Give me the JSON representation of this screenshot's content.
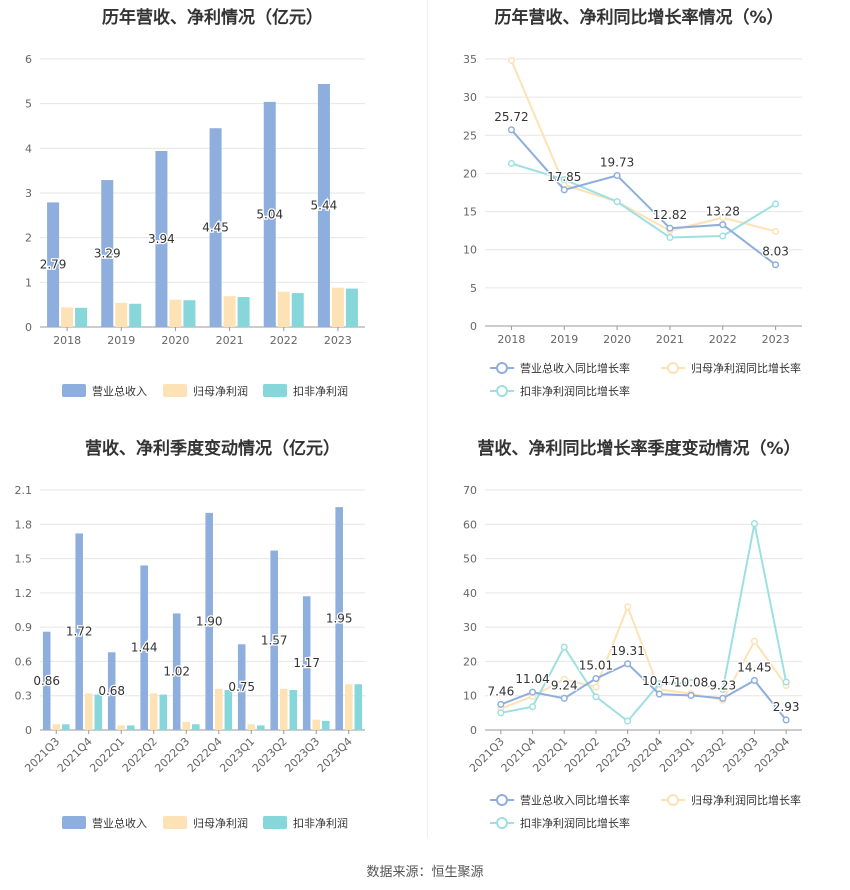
{
  "colors": {
    "revenue": "#8eaedd",
    "net_profit": "#fde2b5",
    "deducted_profit": "#86d6da",
    "grid": "#e6e6e6",
    "axis_text": "#666666"
  },
  "footer": {
    "source_label": "数据来源：",
    "source_name": "恒生聚源"
  },
  "chart_data": [
    {
      "id": "annual-amount",
      "type": "bar",
      "title": "历年营收、净利情况（亿元）",
      "categories": [
        "2018",
        "2019",
        "2020",
        "2021",
        "2022",
        "2023"
      ],
      "ylim": [
        0,
        6
      ],
      "yticks": [
        0,
        1,
        2,
        3,
        4,
        5,
        6
      ],
      "series": [
        {
          "name": "营业总收入",
          "values": [
            2.79,
            3.29,
            3.94,
            4.45,
            5.04,
            5.44
          ],
          "labels": [
            "2.79",
            "3.29",
            "3.94",
            "4.45",
            "5.04",
            "5.44"
          ]
        },
        {
          "name": "归母净利润",
          "values": [
            0.44,
            0.54,
            0.61,
            0.69,
            0.79,
            0.88
          ]
        },
        {
          "name": "扣非净利润",
          "values": [
            0.43,
            0.52,
            0.6,
            0.67,
            0.76,
            0.86
          ]
        }
      ],
      "legend_position": "bottom"
    },
    {
      "id": "annual-growth",
      "type": "line",
      "title": "历年营收、净利同比增长率情况（%）",
      "categories": [
        "2018",
        "2019",
        "2020",
        "2021",
        "2022",
        "2023"
      ],
      "ylim": [
        0,
        35
      ],
      "yticks": [
        0,
        5,
        10,
        15,
        20,
        25,
        30,
        35
      ],
      "series": [
        {
          "name": "营业总收入同比增长率",
          "values": [
            25.72,
            17.85,
            19.73,
            12.82,
            13.28,
            8.03
          ],
          "labels": [
            "25.72",
            "17.85",
            "19.73",
            "12.82",
            "13.28",
            "8.03"
          ]
        },
        {
          "name": "归母净利润同比增长率",
          "values": [
            34.8,
            18.5,
            16.3,
            12.5,
            14.2,
            12.4
          ]
        },
        {
          "name": "扣非净利润同比增长率",
          "values": [
            21.3,
            19.2,
            16.3,
            11.6,
            11.8,
            16.0
          ]
        }
      ],
      "legend_position": "bottom"
    },
    {
      "id": "quarterly-amount",
      "type": "bar",
      "title": "营收、净利季度变动情况（亿元）",
      "categories": [
        "2021Q3",
        "2021Q4",
        "2022Q1",
        "2022Q2",
        "2022Q3",
        "2022Q4",
        "2023Q1",
        "2023Q2",
        "2023Q3",
        "2023Q4"
      ],
      "ylim": [
        0,
        2.1
      ],
      "yticks": [
        "0",
        "0.3",
        "0.6",
        "0.9",
        "1.2",
        "1.5",
        "1.8",
        "2.1"
      ],
      "series": [
        {
          "name": "营业总收入",
          "values": [
            0.86,
            1.72,
            0.68,
            1.44,
            1.02,
            1.9,
            0.75,
            1.57,
            1.17,
            1.95
          ],
          "labels": [
            "0.86",
            "1.72",
            "0.68",
            "1.44",
            "1.02",
            "1.90",
            "0.75",
            "1.57",
            "1.17",
            "1.95"
          ]
        },
        {
          "name": "归母净利润",
          "values": [
            0.05,
            0.32,
            0.04,
            0.32,
            0.07,
            0.36,
            0.05,
            0.36,
            0.09,
            0.4
          ]
        },
        {
          "name": "扣非净利润",
          "values": [
            0.05,
            0.31,
            0.04,
            0.31,
            0.05,
            0.35,
            0.04,
            0.35,
            0.08,
            0.4
          ]
        }
      ],
      "legend_position": "bottom"
    },
    {
      "id": "quarterly-growth",
      "type": "line",
      "title": "营收、净利同比增长率季度变动情况（%）",
      "categories": [
        "2021Q3",
        "2021Q4",
        "2022Q1",
        "2022Q2",
        "2022Q3",
        "2022Q4",
        "2023Q1",
        "2023Q2",
        "2023Q3",
        "2023Q4"
      ],
      "ylim": [
        0,
        70
      ],
      "yticks": [
        0,
        10,
        20,
        30,
        40,
        50,
        60,
        70
      ],
      "series": [
        {
          "name": "营业总收入同比增长率",
          "values": [
            7.46,
            11.04,
            9.24,
            15.01,
            19.31,
            10.47,
            10.08,
            9.23,
            14.45,
            2.93
          ],
          "labels": [
            "7.46",
            "11.04",
            "9.24",
            "15.01",
            "19.31",
            "10.47",
            "10.08",
            "9.23",
            "14.45",
            "2.93"
          ]
        },
        {
          "name": "归母净利润同比增长率",
          "values": [
            6.2,
            9.8,
            14.8,
            12.5,
            35.9,
            11.8,
            10.6,
            8.7,
            25.9,
            13.0
          ]
        },
        {
          "name": "扣非净利润同比增长率",
          "values": [
            5.0,
            6.8,
            24.2,
            9.7,
            2.6,
            13.5,
            13.8,
            11.8,
            60.2,
            14.0
          ]
        }
      ],
      "legend_position": "bottom"
    }
  ]
}
